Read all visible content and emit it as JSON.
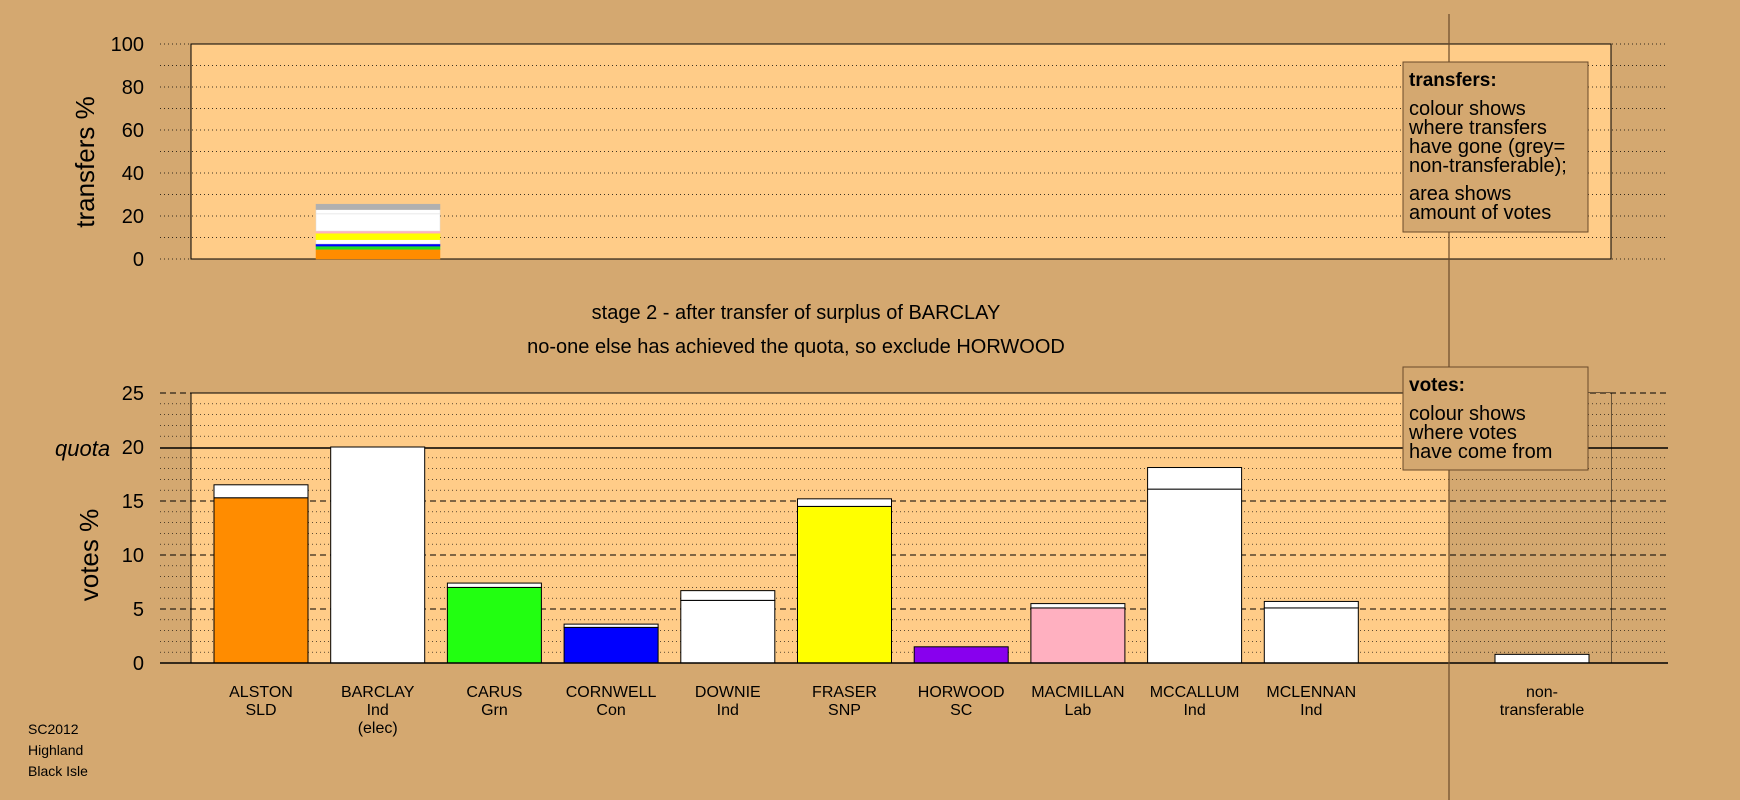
{
  "chart_data": [
    {
      "type": "bar",
      "panel": "transfers",
      "ylabel": "transfers %",
      "ylim": [
        0,
        100
      ],
      "yticks": [
        0,
        20,
        40,
        60,
        80,
        100
      ],
      "stacked_transfer": {
        "from": "BARCLAY",
        "segments": [
          {
            "to": "ALSTON",
            "value": 4.5,
            "color": "#ff8c00"
          },
          {
            "to": "CARUS",
            "value": 1.5,
            "color": "#22dd22"
          },
          {
            "to": "CORNWELL",
            "value": 1.0,
            "color": "#0000ff"
          },
          {
            "to": "DOWNIE",
            "value": 2.0,
            "color": "#ffffff"
          },
          {
            "to": "FRASER",
            "value": 3.0,
            "color": "#ffff00"
          },
          {
            "to": "MACMILLAN",
            "value": 1.0,
            "color": "#ffb0c0"
          },
          {
            "to": "MCCALLUM",
            "value": 8.0,
            "color": "#ffffff"
          },
          {
            "to": "MCLENNAN",
            "value": 2.0,
            "color": "#ffffff"
          },
          {
            "to": "non-transferable",
            "value": 2.5,
            "color": "#b0b0b0"
          }
        ]
      },
      "legend": {
        "title": "transfers:",
        "lines1": [
          "colour shows",
          "where transfers",
          "have gone (grey=",
          "non-transferable);"
        ],
        "lines2": [
          "area shows",
          "amount of votes"
        ]
      }
    },
    {
      "type": "bar",
      "panel": "votes",
      "ylabel": "votes %",
      "ylim": [
        0,
        25
      ],
      "yticks": [
        0,
        5,
        10,
        15,
        20,
        25
      ],
      "quota": 20,
      "quota_label": "quota",
      "candidates": [
        {
          "name": "ALSTON",
          "party": "SLD",
          "extra": "",
          "first": 15.3,
          "transferred": 1.2,
          "color": "#ff8c00"
        },
        {
          "name": "BARCLAY",
          "party": "Ind",
          "extra": "(elec)",
          "first": 20.0,
          "transferred": 0.0,
          "color": "#ffffff"
        },
        {
          "name": "CARUS",
          "party": "Grn",
          "extra": "",
          "first": 7.0,
          "transferred": 0.4,
          "color": "#22ff11"
        },
        {
          "name": "CORNWELL",
          "party": "Con",
          "extra": "",
          "first": 3.3,
          "transferred": 0.3,
          "color": "#0000ff"
        },
        {
          "name": "DOWNIE",
          "party": "Ind",
          "extra": "",
          "first": 5.8,
          "transferred": 0.9,
          "color": "#ffffff"
        },
        {
          "name": "FRASER",
          "party": "SNP",
          "extra": "",
          "first": 14.5,
          "transferred": 0.7,
          "color": "#ffff00"
        },
        {
          "name": "HORWOOD",
          "party": "SC",
          "extra": "",
          "first": 1.5,
          "transferred": 0.0,
          "color": "#8800ee"
        },
        {
          "name": "MACMILLAN",
          "party": "Lab",
          "extra": "",
          "first": 5.1,
          "transferred": 0.4,
          "color": "#ffb0c0"
        },
        {
          "name": "MCCALLUM",
          "party": "Ind",
          "extra": "",
          "first": 16.1,
          "transferred": 2.0,
          "color": "#ffffff"
        },
        {
          "name": "MCLENNAN",
          "party": "Ind",
          "extra": "",
          "first": 5.1,
          "transferred": 0.6,
          "color": "#ffffff"
        }
      ],
      "nontransferable": {
        "line1": "non-",
        "line2": "transferable",
        "value": 0.8
      },
      "legend": {
        "title": "votes:",
        "lines": [
          "colour shows",
          "where votes",
          "have come from"
        ]
      }
    }
  ],
  "stage_text": {
    "line1": "stage 2 - after transfer of surplus of BARCLAY",
    "line2": "no-one else has achieved the quota, so exclude HORWOOD"
  },
  "footer": {
    "line1": "SC2012",
    "line2": "Highland",
    "line3": "Black Isle"
  },
  "colors": {
    "background": "#d4a870",
    "plot_area": "#ffcc88",
    "nontransferable_zone": "#d4a870"
  }
}
